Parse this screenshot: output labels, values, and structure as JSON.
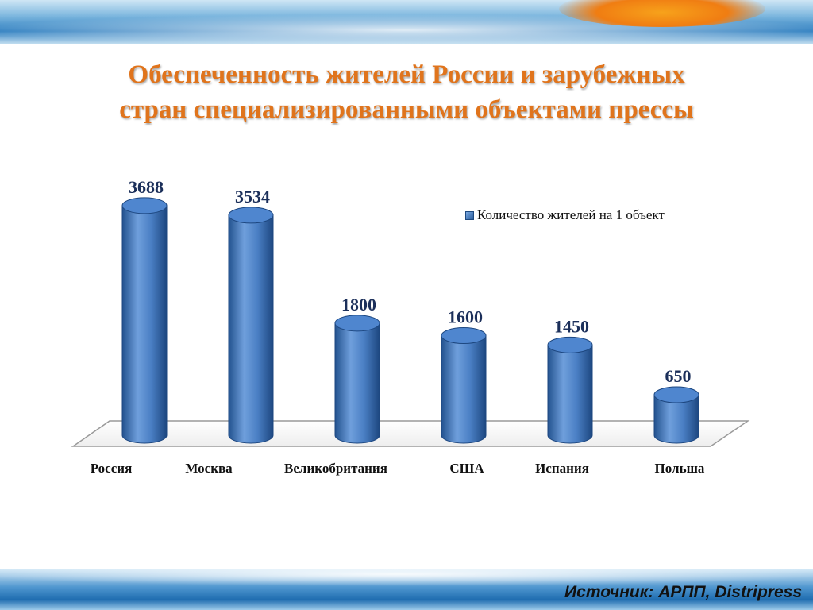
{
  "slide": {
    "title_line1": "Обеспеченность жителей России и зарубежных",
    "title_line2": "стран специализированными объектами прессы",
    "source": "Источник: АРПП, Distripress"
  },
  "colors": {
    "title": "#e0741c",
    "bar_light": "#6f9fdc",
    "bar_dark": "#23528f",
    "bar_top": "#4f86cf"
  },
  "chart_data": {
    "type": "bar",
    "categories": [
      "Россия",
      "Москва",
      "Великобритания",
      "США",
      "Испания",
      "Польша"
    ],
    "series": [
      {
        "name": "Количество жителей на 1 объект",
        "values": [
          3688,
          3534,
          1800,
          1600,
          1450,
          650
        ]
      }
    ],
    "ylim": [
      0,
      4000
    ],
    "grid": false,
    "legend_position": "top-right"
  }
}
